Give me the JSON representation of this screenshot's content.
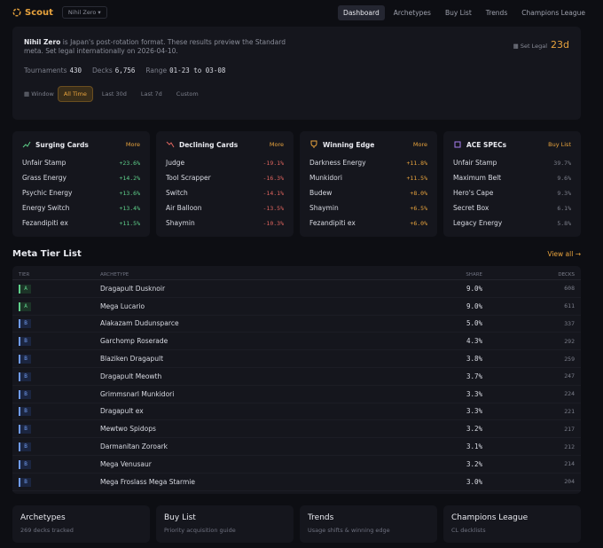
{
  "header": {
    "logo": "Scout",
    "format": "Nihil Zero",
    "nav": [
      "Dashboard",
      "Archetypes",
      "Buy List",
      "Trends",
      "Champions League"
    ]
  },
  "intro": {
    "format": "Nihil Zero",
    "text": "is Japan's post-rotation format. These results preview the Standard meta. Set legal internationally on 2026-04-10.",
    "set_legal_label": "Set Legal",
    "set_legal_value": "23d",
    "stats": [
      {
        "label": "Tournaments",
        "value": "430"
      },
      {
        "label": "Decks",
        "value": "6,756"
      },
      {
        "label": "Range",
        "value": "01-23 to 03-08"
      }
    ],
    "window_label": "Window",
    "windows": [
      "All Time",
      "Last 30d",
      "Last 7d",
      "Custom"
    ]
  },
  "cards": [
    {
      "title": "Surging Cards",
      "action": "More",
      "rows": [
        [
          "Unfair Stamp",
          "+23.6%"
        ],
        [
          "Grass Energy",
          "+14.2%"
        ],
        [
          "Psychic Energy",
          "+13.6%"
        ],
        [
          "Energy Switch",
          "+13.4%"
        ],
        [
          "Fezandipiti ex",
          "+11.5%"
        ]
      ]
    },
    {
      "title": "Declining Cards",
      "action": "More",
      "rows": [
        [
          "Judge",
          "-19.1%"
        ],
        [
          "Tool Scrapper",
          "-16.3%"
        ],
        [
          "Switch",
          "-14.1%"
        ],
        [
          "Air Balloon",
          "-13.5%"
        ],
        [
          "Shaymin",
          "-10.3%"
        ]
      ]
    },
    {
      "title": "Winning Edge",
      "action": "More",
      "rows": [
        [
          "Darkness Energy",
          "+11.8%"
        ],
        [
          "Munkidori",
          "+11.5%"
        ],
        [
          "Budew",
          "+8.0%"
        ],
        [
          "Shaymin",
          "+6.5%"
        ],
        [
          "Fezandipiti ex",
          "+6.0%"
        ]
      ]
    },
    {
      "title": "ACE SPECs",
      "action": "Buy List",
      "rows": [
        [
          "Unfair Stamp",
          "39.7%"
        ],
        [
          "Maximum Belt",
          "9.6%"
        ],
        [
          "Hero's Cape",
          "9.3%"
        ],
        [
          "Secret Box",
          "6.1%"
        ],
        [
          "Legacy Energy",
          "5.8%"
        ]
      ]
    }
  ],
  "tier_list": {
    "title": "Meta Tier List",
    "link": "View all →",
    "columns": [
      "TIER",
      "ARCHETYPE",
      "SHARE",
      "DECKS"
    ],
    "rows": [
      [
        "A",
        "Dragapult Dusknoir",
        "9.0%",
        "608"
      ],
      [
        "A",
        "Mega Lucario",
        "9.0%",
        "611"
      ],
      [
        "B",
        "Alakazam Dudunsparce",
        "5.0%",
        "337"
      ],
      [
        "B",
        "Garchomp Roserade",
        "4.3%",
        "292"
      ],
      [
        "B",
        "Blaziken Dragapult",
        "3.8%",
        "259"
      ],
      [
        "B",
        "Dragapult Meowth",
        "3.7%",
        "247"
      ],
      [
        "B",
        "Grimmsnarl Munkidori",
        "3.3%",
        "224"
      ],
      [
        "B",
        "Dragapult ex",
        "3.3%",
        "221"
      ],
      [
        "B",
        "Mewtwo Spidops",
        "3.2%",
        "217"
      ],
      [
        "B",
        "Darmanitan Zoroark",
        "3.1%",
        "212"
      ],
      [
        "B",
        "Mega Venusaur",
        "3.2%",
        "214"
      ],
      [
        "B",
        "Mega Froslass Mega Starmie",
        "3.0%",
        "204"
      ]
    ]
  },
  "footer": [
    {
      "title": "Archetypes",
      "subtitle": "269 decks tracked"
    },
    {
      "title": "Buy List",
      "subtitle": "Priority acquisition guide"
    },
    {
      "title": "Trends",
      "subtitle": "Usage shifts & winning edge"
    },
    {
      "title": "Champions League",
      "subtitle": "CL decklists"
    }
  ]
}
